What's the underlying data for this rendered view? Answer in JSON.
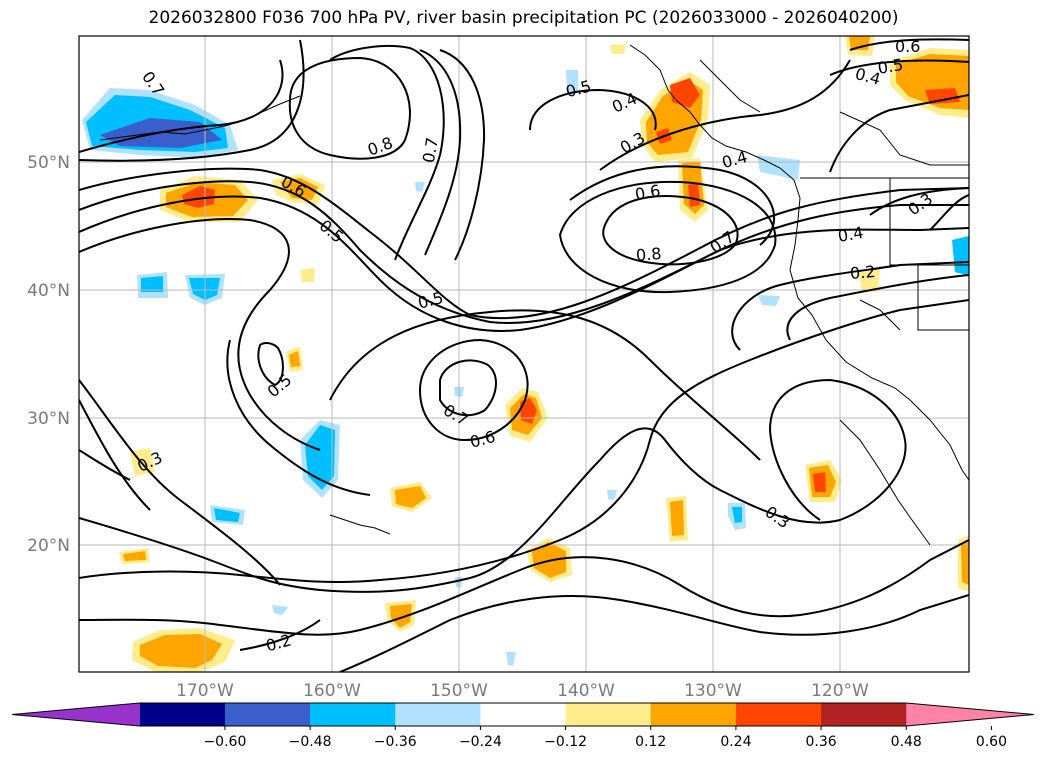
{
  "title": "2026032800 F036 700 hPa PV, river basin precipitation PC (2026033000 - 2026040200)",
  "lat_labels": [
    "50°N",
    "40°N",
    "30°N",
    "20°N"
  ],
  "lon_labels": [
    "170°W",
    "160°W",
    "150°W",
    "140°W",
    "130°W",
    "120°W"
  ],
  "contour_labels": [
    "0.7",
    "0.8",
    "0.7",
    "0.5",
    "0.4",
    "0.3",
    "0.6",
    "0.5",
    "0.4",
    "0.4",
    "0.3",
    "0.6",
    "0.5",
    "0.6",
    "0.8",
    "0.7",
    "0.4",
    "0.2",
    "0.5",
    "0.5",
    "0.7",
    "0.6",
    "0.3",
    "0.3",
    "0.2"
  ],
  "colorbar": {
    "colors": [
      "#9932cc",
      "#00008b",
      "#3a5fcd",
      "#00bfff",
      "#b0e2ff",
      "#ffffff",
      "#ffec8b",
      "#ffa500",
      "#ff4500",
      "#b22222",
      "#ff82ab"
    ],
    "tick_labels": [
      "−0.60",
      "−0.48",
      "−0.36",
      "−0.24",
      "−0.12",
      "0.12",
      "0.24",
      "0.36",
      "0.48",
      "0.60"
    ]
  }
}
